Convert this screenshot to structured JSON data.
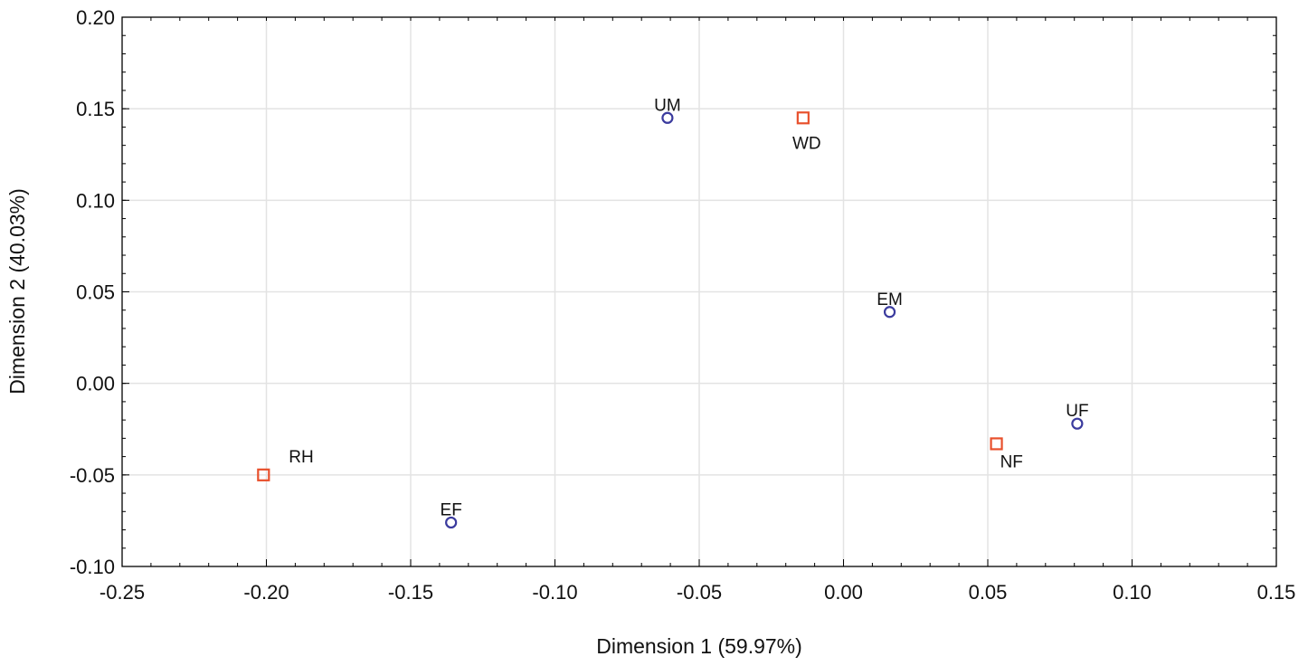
{
  "chart_data": {
    "type": "scatter",
    "title": "",
    "xlabel": "Dimension 1 (59.97%)",
    "ylabel": "Dimension 2 (40.03%)",
    "xlim": [
      -0.25,
      0.15
    ],
    "ylim": [
      -0.1,
      0.2
    ],
    "xticks": [
      "-0.25",
      "-0.20",
      "-0.15",
      "-0.10",
      "-0.05",
      "0.00",
      "0.05",
      "0.10",
      "0.15"
    ],
    "yticks": [
      "0.20",
      "0.15",
      "0.10",
      "0.05",
      "0.00",
      "-0.05",
      "-0.10"
    ],
    "grid": true,
    "series": [
      {
        "name": "circles",
        "marker": "circle",
        "color": "#3b3b9e",
        "points": [
          {
            "label": "UM",
            "x": -0.061,
            "y": 0.145,
            "label_position": "above"
          },
          {
            "label": "EM",
            "x": 0.016,
            "y": 0.039,
            "label_position": "above"
          },
          {
            "label": "UF",
            "x": 0.081,
            "y": -0.022,
            "label_position": "above"
          },
          {
            "label": "EF",
            "x": -0.136,
            "y": -0.076,
            "label_position": "above"
          }
        ]
      },
      {
        "name": "squares",
        "marker": "square",
        "color": "#e8502c",
        "points": [
          {
            "label": "WD",
            "x": -0.014,
            "y": 0.145,
            "label_position": "below"
          },
          {
            "label": "NF",
            "x": 0.053,
            "y": -0.033,
            "label_position": "below-right"
          },
          {
            "label": "RH",
            "x": -0.201,
            "y": -0.05,
            "label_position": "upper-right"
          }
        ]
      }
    ]
  }
}
